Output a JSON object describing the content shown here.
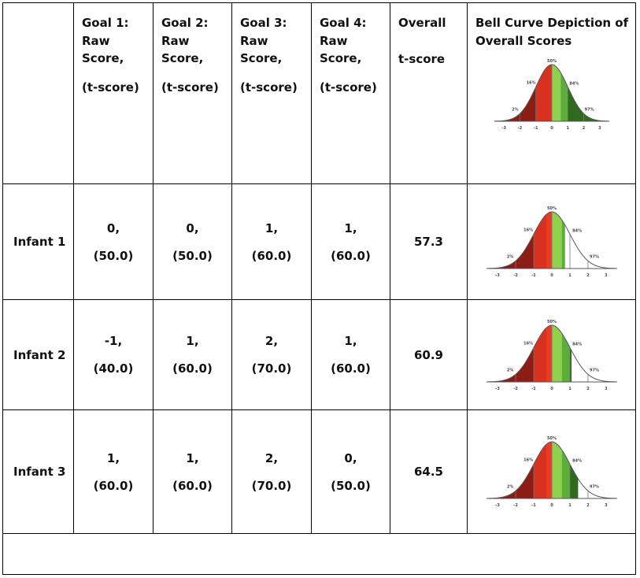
{
  "header": {
    "goal1": [
      "Goal 1:",
      "Raw",
      "Score,",
      "(t-score)"
    ],
    "goal2": [
      "Goal 2:",
      "Raw",
      "Score,",
      "(t-score)"
    ],
    "goal3": [
      "Goal 3:",
      "Raw",
      "Score,",
      "(t-score)"
    ],
    "goal4": [
      "Goal 4:",
      "Raw",
      "Score,",
      "(t-score)"
    ],
    "overall": [
      "Overall",
      "t-score"
    ],
    "bell": [
      "Bell Curve Depiction of",
      "Overall Scores"
    ]
  },
  "curve_labels": {
    "percents": [
      "50%",
      "16%",
      "84%",
      "2%",
      "97%"
    ],
    "ticks": [
      "-3",
      "-2",
      "-1",
      "0",
      "1",
      "2",
      "3"
    ]
  },
  "rows": [
    {
      "label": "Infant 1",
      "raw": [
        "0,",
        "0,",
        "1,",
        "1,"
      ],
      "t": [
        "(50.0)",
        "(50.0)",
        "(60.0)",
        "(60.0)"
      ],
      "overall": "57.3",
      "shaded_to_sd": 0.73
    },
    {
      "label": "Infant 2",
      "raw": [
        "-1,",
        "1,",
        "2,",
        "1,"
      ],
      "t": [
        "(40.0)",
        "(60.0)",
        "(70.0)",
        "(60.0)"
      ],
      "overall": "60.9",
      "shaded_to_sd": 1.09
    },
    {
      "label": "Infant 3",
      "raw": [
        "1,",
        "1,",
        "2,",
        "0,"
      ],
      "t": [
        "(60.0)",
        "(60.0)",
        "(70.0)",
        "(50.0)"
      ],
      "overall": "64.5",
      "shaded_to_sd": 1.45
    }
  ],
  "colors": {
    "dark_red": "#8b1d14",
    "red": "#d9311f",
    "bright_red": "#ee3b23",
    "light_green": "#8fd14f",
    "green": "#5cad3a",
    "dark_green": "#2f6a1e"
  }
}
